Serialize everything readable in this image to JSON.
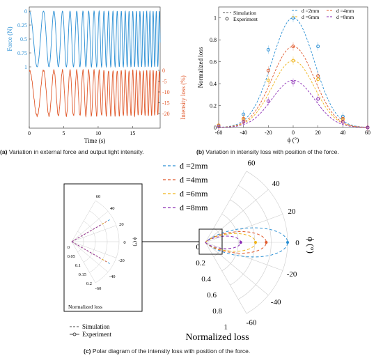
{
  "panel_a": {
    "caption_letter": "(a)",
    "caption_text": "Variation in external force and output light intensity.",
    "left_ylabel": "Force (N)",
    "right_ylabel": "Intensity loss (%)",
    "xlabel": "Time (s)",
    "left_ticks": [
      "0",
      "0.25",
      "0.5",
      "0.75",
      "1"
    ],
    "right_ticks": [
      "0",
      "-5",
      "-10",
      "-15",
      "-20"
    ],
    "x_ticks": [
      "0",
      "5",
      "10",
      "15"
    ],
    "force_color": "#2a8fd4",
    "intensity_color": "#e0582a"
  },
  "panel_b": {
    "caption_letter": "(b)",
    "caption_text": "Variation in intensity loss with position of the force.",
    "ylabel": "Normalized loss",
    "xlabel": "ϕ (°)",
    "x_ticks": [
      "-60",
      "-40",
      "-20",
      "0",
      "20",
      "40",
      "60"
    ],
    "y_ticks": [
      "0",
      "0.2",
      "0.4",
      "0.6",
      "0.8",
      "1"
    ],
    "legend": {
      "simulation": "Simulation",
      "experiment": "Experiment",
      "d2": "d =2mm",
      "d4": "d =4mm",
      "d6": "d =6mm",
      "d8": "d =8mm"
    }
  },
  "panel_c": {
    "caption_letter": "(c)",
    "caption_text": "Polar diagram of the intensity loss with position of the force.",
    "legend": [
      "d =2mm",
      "d =4mm",
      "d =6mm",
      "d =8mm"
    ],
    "angle_ticks": [
      "60",
      "40",
      "20",
      "0",
      "-20",
      "-40",
      "-60"
    ],
    "radial_ticks": [
      "0",
      "0.2",
      "0.4",
      "0.6",
      "0.8",
      "1"
    ],
    "phi_label": "ϕ (°)",
    "radial_label": "Normalized loss",
    "inset_angle_ticks": [
      "60",
      "40",
      "20",
      "0",
      "-20",
      "-40",
      "-60"
    ],
    "inset_radial_ticks": [
      "0",
      "0.05",
      "0.1",
      "0.15",
      "0.2"
    ],
    "inset_phi_label": "ϕ (°)",
    "inset_radial_label": "Normalized loss",
    "bottom_legend": {
      "simulation": "Simulation",
      "experiment": "Experiment"
    }
  },
  "colors": {
    "d2": "#2a8fd4",
    "d4": "#e0582a",
    "d6": "#f0b419",
    "d8": "#8a2bb5",
    "sim": "#555555"
  },
  "chart_data": [
    {
      "type": "line",
      "title": "",
      "xlabel": "Time (s)",
      "x_range": [
        0,
        19
      ],
      "series": [
        {
          "name": "Force (N)",
          "axis": "left",
          "amplitude": 1,
          "ylim": [
            -1,
            0
          ]
        },
        {
          "name": "Intensity loss (%)",
          "axis": "right",
          "ylim": [
            -23,
            2
          ]
        }
      ]
    },
    {
      "type": "line",
      "xlabel": "ϕ (°)",
      "ylabel": "Normalized loss",
      "xlim": [
        -60,
        60
      ],
      "ylim": [
        0,
        1.1
      ],
      "x": [
        -60,
        -40,
        -20,
        0,
        20,
        40,
        60
      ],
      "series": [
        {
          "name": "d =2mm",
          "sim_peak": 1.0,
          "experiment": [
            0.02,
            0.12,
            0.71,
            1.0,
            0.74,
            0.1,
            0.0
          ]
        },
        {
          "name": "d =4mm",
          "sim_peak": 0.74,
          "experiment": [
            0.02,
            0.08,
            0.52,
            0.74,
            0.47,
            0.08,
            0.0
          ]
        },
        {
          "name": "d =6mm",
          "sim_peak": 0.61,
          "experiment": [
            0.02,
            0.07,
            0.43,
            0.61,
            0.44,
            0.07,
            0.0
          ]
        },
        {
          "name": "d =8mm",
          "sim_peak": 0.43,
          "experiment": [
            0.01,
            0.05,
            0.24,
            0.41,
            0.26,
            0.05,
            0.0
          ]
        }
      ]
    }
  ]
}
